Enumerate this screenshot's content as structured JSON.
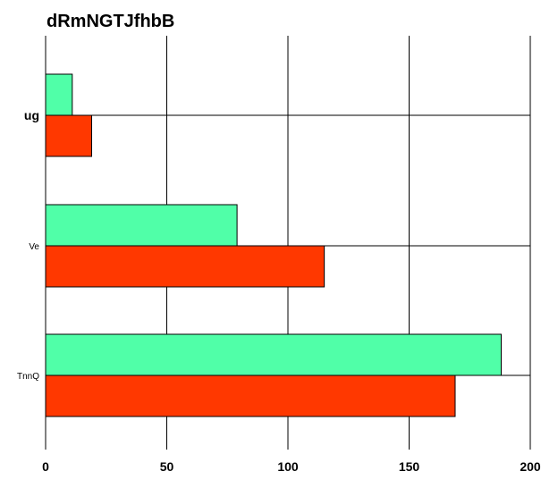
{
  "chart_data": {
    "type": "bar",
    "orientation": "horizontal",
    "title": "dRmNGTJfhbB",
    "categories": [
      "ug",
      "Ve",
      "TnnQ"
    ],
    "series": [
      {
        "values": [
          11,
          79,
          188
        ],
        "color": "#50ffa8"
      },
      {
        "values": [
          19,
          115,
          169
        ],
        "color": "#ff3800"
      }
    ],
    "xlim": [
      0,
      200
    ],
    "xticks": [
      "0",
      "50",
      "100",
      "150",
      "200"
    ],
    "grid": true,
    "legend": "none"
  }
}
